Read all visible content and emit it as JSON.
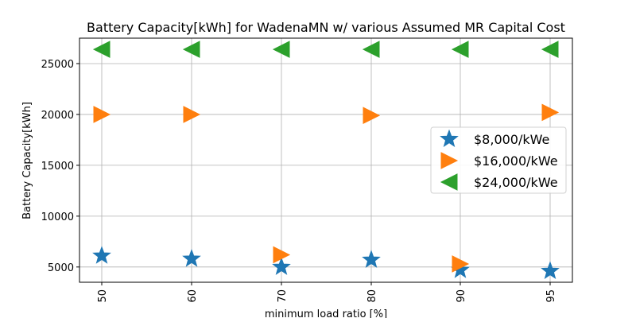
{
  "chart_data": {
    "type": "scatter",
    "title": "Battery Capacity[kWh] for WadenaMN w/ various Assumed MR Capital Cost",
    "xlabel": "minimum load ratio [%]",
    "ylabel": "Battery Capacity[kWh]",
    "categories": [
      "50",
      "60",
      "70",
      "80",
      "90",
      "95"
    ],
    "y_ticks": [
      "5000",
      "10000",
      "15000",
      "20000",
      "25000"
    ],
    "ylim": [
      3500,
      27500
    ],
    "grid": true,
    "legend_position": "center-right",
    "series": [
      {
        "name": "$8,000/kWe",
        "marker": "star",
        "color": "#1f77b4",
        "values": [
          6100,
          5800,
          5000,
          5700,
          4700,
          4600
        ]
      },
      {
        "name": "$16,000/kWe",
        "marker": "triangle-right",
        "color": "#ff7f0e",
        "values": [
          20000,
          20000,
          6200,
          19900,
          5300,
          20200
        ]
      },
      {
        "name": "$24,000/kWe",
        "marker": "triangle-left",
        "color": "#2ca02c",
        "values": [
          26400,
          26400,
          26400,
          26400,
          26400,
          26400
        ]
      }
    ]
  }
}
